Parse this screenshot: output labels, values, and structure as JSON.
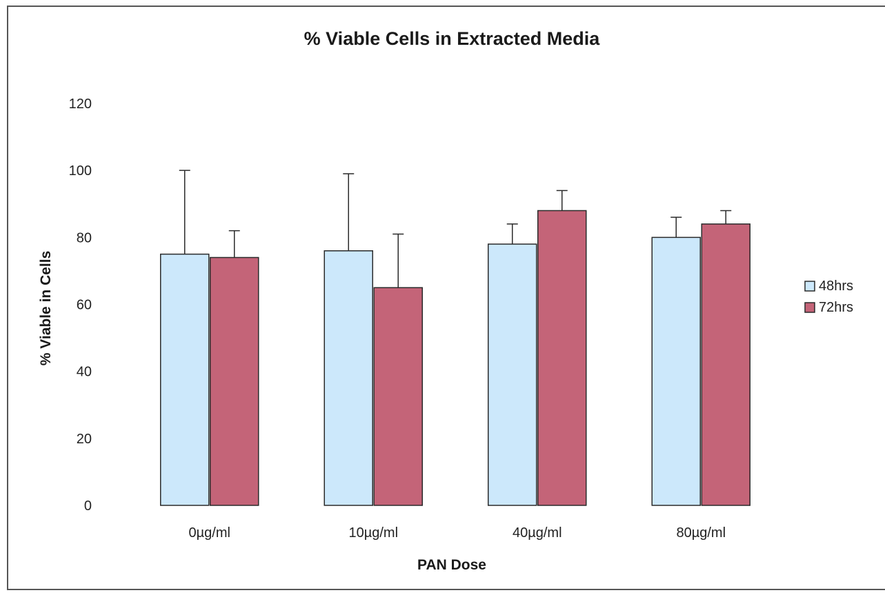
{
  "chart_data": {
    "type": "bar",
    "title": "% Viable Cells in Extracted Media",
    "xlabel": "PAN Dose",
    "ylabel": "% Viable in Cells",
    "categories": [
      "0µg/ml",
      "10µg/ml",
      "40µg/ml",
      "80µg/ml"
    ],
    "ylim": [
      0,
      120
    ],
    "yticks": [
      0,
      20,
      40,
      60,
      80,
      100,
      120
    ],
    "ytick_labels": [
      "0",
      "20",
      "40",
      "60",
      "80",
      "100",
      "120"
    ],
    "grid": false,
    "legend_position": "right",
    "series": [
      {
        "name": "48hrs",
        "color": "#cce8fb",
        "values": [
          75,
          76,
          78,
          80
        ],
        "error_plus": [
          25,
          23,
          6,
          6
        ]
      },
      {
        "name": "72hrs",
        "color": "#c46478",
        "values": [
          74,
          65,
          88,
          84
        ],
        "error_plus": [
          8,
          16,
          6,
          4
        ]
      }
    ]
  }
}
